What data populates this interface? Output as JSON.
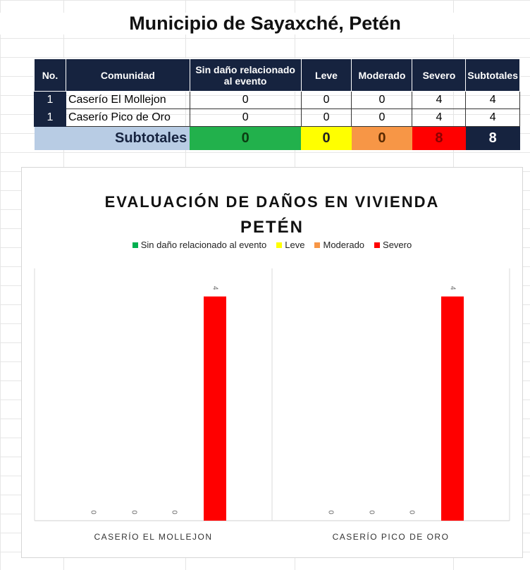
{
  "sheet": {
    "title": "Municipio de Sayaxché, Petén",
    "headers": [
      "No.",
      "Comunidad",
      "Sin daño relacionado al evento",
      "Leve",
      "Moderado",
      "Severo",
      "Subtotales"
    ],
    "rows": [
      {
        "no": "1",
        "comunidad": "Caserío El Mollejon",
        "sin": "0",
        "leve": "0",
        "moderado": "0",
        "severo": "4",
        "subtotal": "4"
      },
      {
        "no": "1",
        "comunidad": "Caserío Pico de Oro",
        "sin": "0",
        "leve": "0",
        "moderado": "0",
        "severo": "4",
        "subtotal": "4"
      }
    ],
    "totals": {
      "label": "Subtotales",
      "sin": "0",
      "leve": "0",
      "moderado": "0",
      "severo": "8",
      "subtotal": "8"
    },
    "colors": {
      "header": "#16233f",
      "sin": "#22b14c",
      "leve": "#ffff00",
      "moderado": "#f79646",
      "severo": "#ff0000",
      "label_bg": "#b8cce4"
    }
  },
  "chart_data": {
    "type": "bar",
    "title": "EVALUACIÓN DE DAÑOS EN VIVIENDA",
    "subtitle": "PETÉN",
    "categories": [
      "CASERÍO EL MOLLEJON",
      "CASERÍO PICO DE ORO"
    ],
    "series": [
      {
        "name": "Sin daño relacionado al evento",
        "color": "#00b050",
        "values": [
          0,
          0
        ]
      },
      {
        "name": "Leve",
        "color": "#ffff00",
        "values": [
          0,
          0
        ]
      },
      {
        "name": "Moderado",
        "color": "#f79646",
        "values": [
          0,
          0
        ]
      },
      {
        "name": "Severo",
        "color": "#ff0000",
        "values": [
          4,
          4
        ]
      }
    ],
    "ylim": [
      0,
      4.5
    ],
    "legend": "top",
    "grid": false,
    "data_labels": true
  }
}
